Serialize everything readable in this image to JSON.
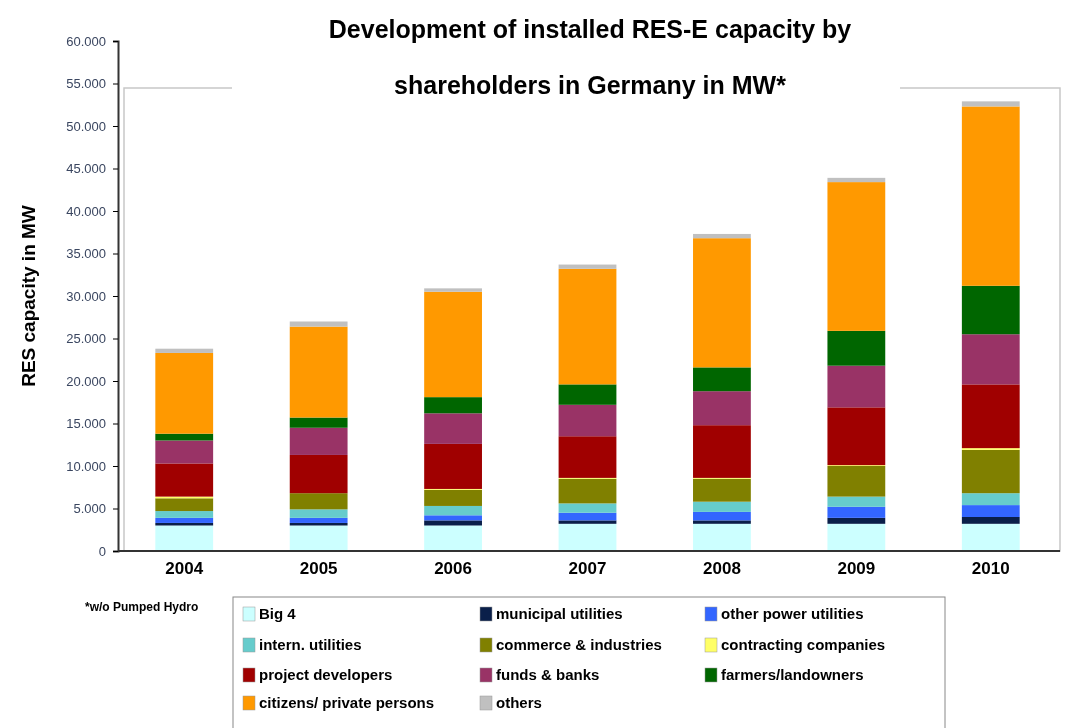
{
  "chart_data": {
    "type": "bar",
    "stacked": true,
    "title": "Development of installed RES-E capacity by shareholders in Germany in MW*",
    "ylabel": "RES capacity in MW",
    "categories": [
      "2004",
      "2005",
      "2006",
      "2007",
      "2008",
      "2009",
      "2010"
    ],
    "ylim": [
      0,
      60000
    ],
    "yticks": [
      0,
      {
        "value": 5000,
        "label": "5.000"
      },
      {
        "value": 10000,
        "label": "10.000"
      },
      {
        "value": 15000,
        "label": "15.000"
      },
      {
        "value": 20000,
        "label": "20.000"
      },
      {
        "value": 25000,
        "label": "25.000"
      },
      {
        "value": 30000,
        "label": "30.000"
      },
      {
        "value": 35000,
        "label": "35.000"
      },
      {
        "value": 40000,
        "label": "40.000"
      },
      {
        "value": 45000,
        "label": "45.000"
      },
      {
        "value": 50000,
        "label": "50.000"
      },
      {
        "value": 55000,
        "label": "55.000"
      },
      {
        "value": 60000,
        "label": "60.000"
      }
    ],
    "legend": "bottom",
    "annotations": [
      "*w/o Pumped Hydro"
    ],
    "series": [
      {
        "name": "Big 4",
        "color": "#ccffff",
        "values": [
          3000,
          3000,
          3000,
          3200,
          3200,
          3200,
          3200
        ]
      },
      {
        "name": "municipal utilities",
        "color": "#0a1f4a",
        "values": [
          300,
          300,
          600,
          400,
          400,
          700,
          800
        ]
      },
      {
        "name": "other power utilities",
        "color": "#3366ff",
        "values": [
          600,
          600,
          600,
          900,
          1000,
          1300,
          1400
        ]
      },
      {
        "name": "intern. utilities",
        "color": "#66cccc",
        "values": [
          800,
          1000,
          1100,
          1100,
          1200,
          1200,
          1400
        ]
      },
      {
        "name": "commerce & industries",
        "color": "#808000",
        "values": [
          1500,
          1900,
          1900,
          2900,
          2700,
          3600,
          5100
        ]
      },
      {
        "name": "contracting companies",
        "color": "#ffff66",
        "values": [
          200,
          null,
          100,
          100,
          100,
          100,
          200
        ]
      },
      {
        "name": "project developers",
        "color": "#a00000",
        "values": [
          3900,
          4500,
          5300,
          4900,
          6200,
          6800,
          7500
        ]
      },
      {
        "name": "funds & banks",
        "color": "#993366",
        "values": [
          2700,
          3200,
          3600,
          3700,
          4000,
          4900,
          5900
        ]
      },
      {
        "name": "farmers/landowners",
        "color": "#006600",
        "values": [
          800,
          1200,
          1900,
          2400,
          2800,
          4100,
          5700
        ]
      },
      {
        "name": "citizens/ private persons",
        "color": "#ff9900",
        "values": [
          9500,
          10700,
          12400,
          13600,
          15200,
          17500,
          21100
        ]
      },
      {
        "name": "others",
        "color": "#c0c0c0",
        "values": [
          500,
          600,
          400,
          500,
          500,
          500,
          600
        ]
      }
    ]
  }
}
